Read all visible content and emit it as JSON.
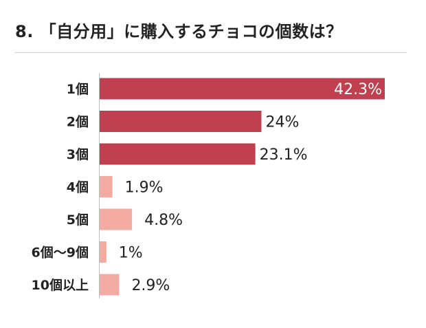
{
  "title": {
    "number": "8.",
    "text": "「自分用」に購入するチョコの個数は？"
  },
  "chart_data": {
    "type": "bar",
    "orientation": "horizontal",
    "categories": [
      "1個",
      "2個",
      "3個",
      "4個",
      "5個",
      "6個〜9個",
      "10個以上"
    ],
    "values": [
      42.3,
      24,
      23.1,
      1.9,
      4.8,
      1,
      2.9
    ],
    "value_labels": [
      "42.3%",
      "24%",
      "23.1%",
      "1.9%",
      "4.8%",
      "1%",
      "2.9%"
    ],
    "title": "「自分用」に購入するチョコの個数は？",
    "xlabel": "",
    "ylabel": "",
    "xlim": [
      0,
      42.3
    ],
    "grid": false,
    "legend": "none",
    "colors": {
      "high": "#c0404f",
      "low": "#f3aaa0",
      "inside_label": "#ffffff",
      "outside_label": "#222222"
    }
  }
}
